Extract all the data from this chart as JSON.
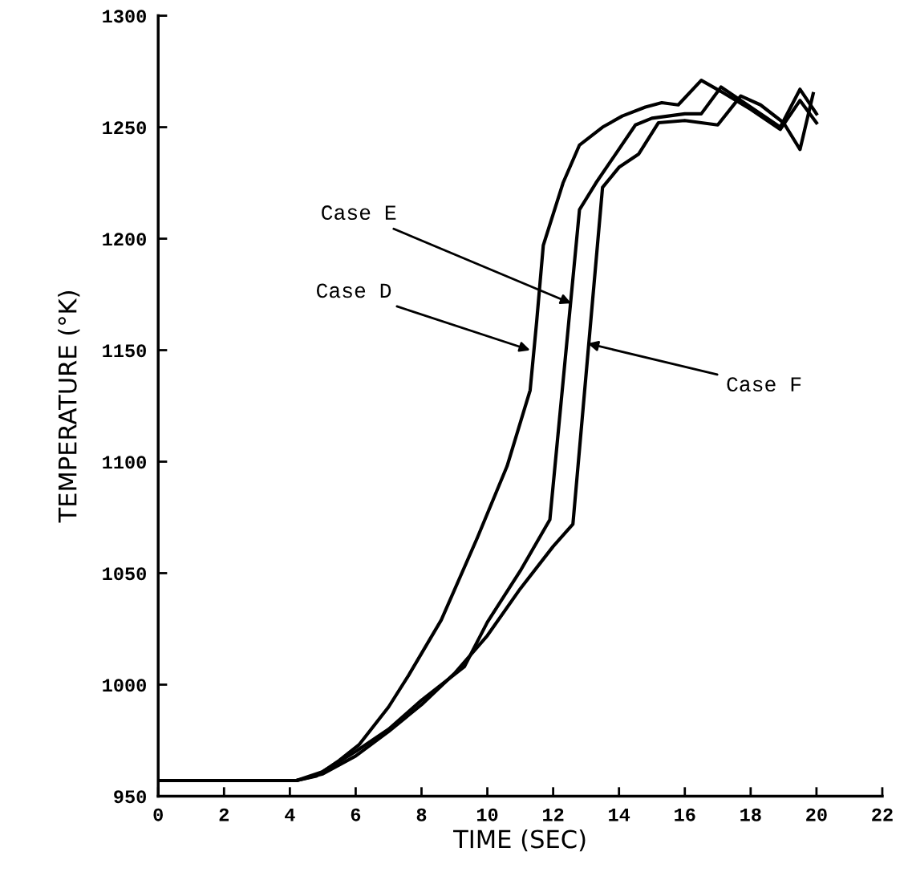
{
  "chart_data": {
    "type": "line",
    "xlabel": "TIME (SEC)",
    "ylabel": "TEMPERATURE (°K)",
    "xlim": [
      0,
      22
    ],
    "xticks": [
      0,
      2,
      4,
      6,
      8,
      10,
      12,
      14,
      16,
      18,
      20,
      22
    ],
    "ylim": [
      950,
      1300
    ],
    "yticks": [
      950,
      1000,
      1050,
      1100,
      1150,
      1200,
      1250,
      1300
    ],
    "grid": false,
    "marker": "none",
    "line_style": "solid",
    "series": [
      {
        "color": "#000000",
        "x": [
          0,
          4.2,
          4.8,
          5.5,
          6.1,
          7.0,
          7.6,
          8.6,
          9.7,
          10.6,
          11.3,
          11.5,
          11.7,
          12.3,
          12.8,
          13.5,
          14.1,
          14.8,
          15.3,
          15.8,
          16.5,
          17.1,
          18.0,
          18.9,
          19.5,
          20.0
        ],
        "values": [
          957,
          957,
          959,
          966,
          973,
          990,
          1004,
          1029,
          1066,
          1098,
          1132,
          1163,
          1197,
          1225,
          1242,
          1250,
          1255,
          1259,
          1261,
          1260,
          1271,
          1266,
          1258,
          1249,
          1262,
          1252
        ]
      },
      {
        "color": "#000000",
        "x": [
          0,
          4.2,
          5.0,
          6.0,
          7.0,
          8.0,
          9.3,
          10.0,
          11.0,
          11.9,
          12.8,
          13.3,
          14.5,
          15.0,
          16.0,
          16.5,
          17.1,
          18.0,
          18.9,
          19.5,
          20.0
        ],
        "values": [
          957,
          957,
          961,
          970,
          980,
          993,
          1008,
          1028,
          1051,
          1074,
          1213,
          1225,
          1251,
          1254,
          1256,
          1256,
          1268,
          1259,
          1250,
          1267,
          1256
        ]
      },
      {
        "color": "#000000",
        "x": [
          0,
          4.2,
          5.0,
          6.0,
          7.0,
          8.0,
          9.0,
          10.0,
          11.0,
          12.0,
          12.6,
          13.5,
          14.0,
          14.6,
          15.2,
          16.0,
          17.0,
          17.7,
          18.3,
          19.0,
          19.5,
          19.9
        ],
        "values": [
          957,
          957,
          960,
          968,
          979,
          991,
          1005,
          1022,
          1043,
          1062,
          1072,
          1223,
          1232,
          1238,
          1252,
          1253,
          1251,
          1264,
          1260,
          1252,
          1240,
          1265
        ]
      }
    ],
    "annotations": [
      {
        "text": "Case E",
        "x": 12.55,
        "y": 1171
      },
      {
        "text": "Case D",
        "x": 11.3,
        "y": 1150
      },
      {
        "text": "Case F",
        "x": 13.05,
        "y": 1153
      }
    ]
  }
}
